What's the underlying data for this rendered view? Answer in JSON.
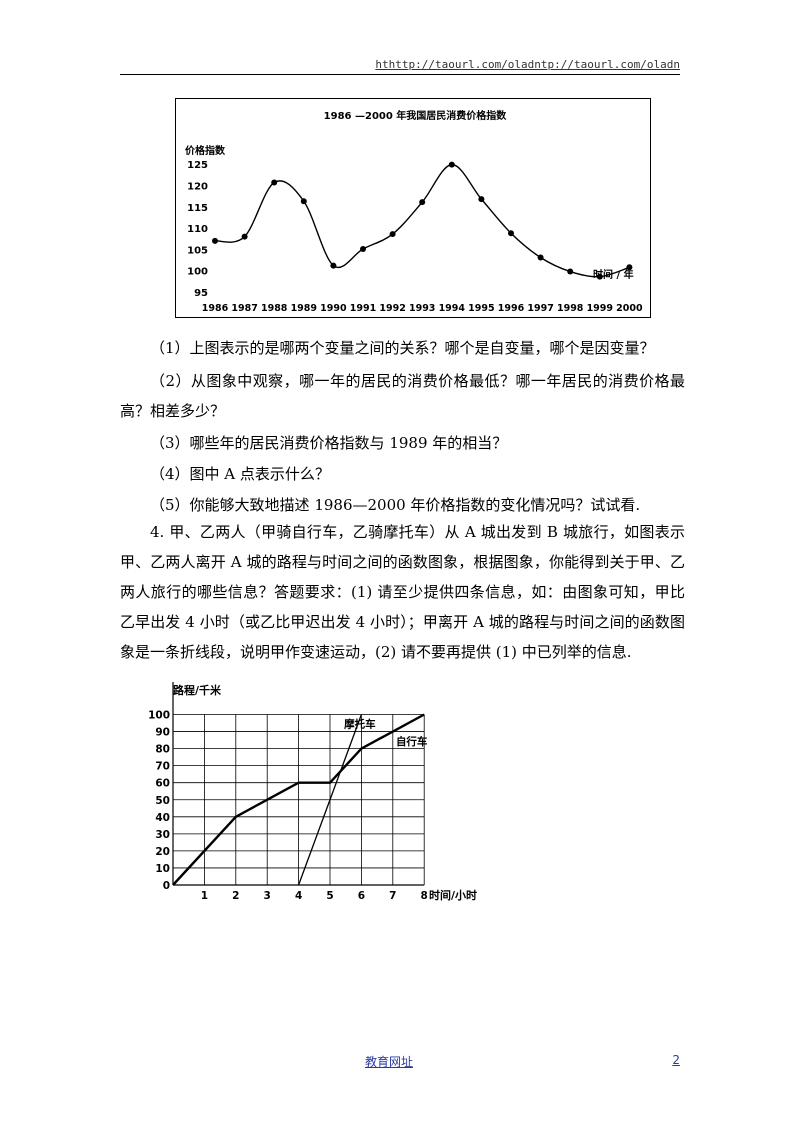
{
  "header": {
    "url": "hthttp://taourl.com/oladntp://taourl.com/oladn"
  },
  "chart_data": [
    {
      "type": "line",
      "title": "1986 —2000 年我国居民消费价格指数",
      "ylabel": "价格指数",
      "xlabel": "时间 / 年",
      "x": [
        1986,
        1987,
        1988,
        1989,
        1990,
        1991,
        1992,
        1993,
        1994,
        1995,
        1996,
        1997,
        1998,
        1999,
        2000
      ],
      "values": [
        107,
        108,
        120.7,
        116.3,
        101.2,
        105.1,
        108.6,
        116.1,
        124.9,
        116.8,
        108.8,
        103.1,
        99.8,
        98.6,
        100.8
      ],
      "ylim": [
        95,
        127
      ],
      "yticks": [
        95,
        100,
        105,
        110,
        115,
        120,
        125
      ],
      "grid": false
    },
    {
      "type": "line",
      "title": "",
      "ylabel": "路程/千米",
      "xlabel": "时间/小时",
      "xticks": [
        1,
        2,
        3,
        4,
        5,
        6,
        7,
        8
      ],
      "yticks": [
        0,
        10,
        20,
        30,
        40,
        50,
        60,
        70,
        80,
        90,
        100
      ],
      "xlim": [
        0,
        8
      ],
      "ylim": [
        0,
        100
      ],
      "grid": true,
      "series": [
        {
          "name": "自行车",
          "x": [
            0,
            2,
            4,
            5,
            6,
            8
          ],
          "y": [
            0,
            40,
            60,
            60,
            80,
            100
          ]
        },
        {
          "name": "摩托车",
          "x": [
            4,
            6
          ],
          "y": [
            0,
            100
          ]
        }
      ]
    }
  ],
  "questions": {
    "q1": "（1）上图表示的是哪两个变量之间的关系？哪个是自变量，哪个是因变量？",
    "q2": "（2）从图象中观察，哪一年的居民的消费价格最低？哪一年居民的消费价格最高？相差多少？",
    "q3": "（3）哪些年的居民消费价格指数与 1989 年的相当？",
    "q4": "（4）图中 A 点表示什么？",
    "q5": "（5）你能够大致地描述 1986—2000 年价格指数的变化情况吗？试试看.",
    "p4": "4. 甲、乙两人（甲骑自行车，乙骑摩托车）从 A 城出发到 B 城旅行，如图表示甲、乙两人离开 A 城的路程与时间之间的函数图象，根据图象，你能得到关于甲、乙两人旅行的哪些信息？答题要求：(1) 请至少提供四条信息，如：由图象可知，甲比乙早出发 4 小时（或乙比甲迟出发 4 小时）；甲离开 A 城的路程与时间之间的函数图象是一条折线段，说明甲作变速运动，(2) 请不要再提供 (1) 中已列举的信息."
  },
  "footer": {
    "link": "教育网址",
    "page": "2"
  }
}
